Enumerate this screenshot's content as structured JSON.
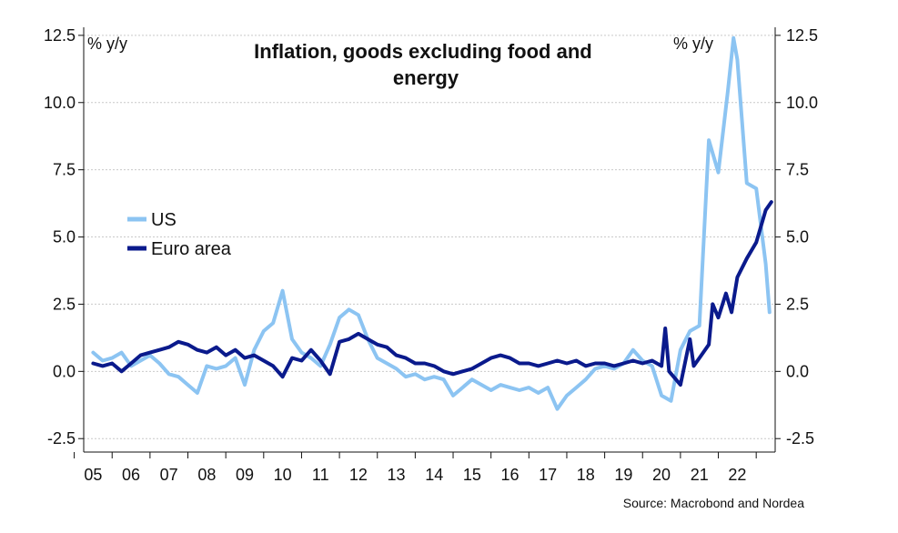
{
  "chart_data": {
    "type": "line",
    "title": "Inflation, goods excluding food and energy",
    "ylabel_left": "% y/y",
    "ylabel_right": "% y/y",
    "source": "Source: Macrobond and Nordea",
    "ylim": [
      -3.0,
      12.8
    ],
    "y_ticks": [
      -2.5,
      0.0,
      2.5,
      5.0,
      7.5,
      10.0,
      12.5
    ],
    "y_tick_labels": [
      "-2.5",
      "0.0",
      "2.5",
      "5.0",
      "7.5",
      "10.0",
      "12.5"
    ],
    "xlim": [
      2004.75,
      2023.0
    ],
    "x_ticks": [
      2005,
      2006,
      2007,
      2008,
      2009,
      2010,
      2011,
      2012,
      2013,
      2014,
      2015,
      2016,
      2017,
      2018,
      2019,
      2020,
      2021,
      2022
    ],
    "x_tick_labels": [
      "05",
      "06",
      "07",
      "08",
      "09",
      "10",
      "11",
      "12",
      "13",
      "14",
      "15",
      "16",
      "17",
      "18",
      "19",
      "20",
      "21",
      "22"
    ],
    "legend_position": "left-middle",
    "grid": true,
    "series": [
      {
        "name": "US",
        "color": "#8cc4f2",
        "points": [
          [
            2005.0,
            0.7
          ],
          [
            2005.25,
            0.4
          ],
          [
            2005.5,
            0.5
          ],
          [
            2005.75,
            0.7
          ],
          [
            2006.0,
            0.2
          ],
          [
            2006.25,
            0.4
          ],
          [
            2006.5,
            0.6
          ],
          [
            2006.75,
            0.3
          ],
          [
            2007.0,
            -0.1
          ],
          [
            2007.25,
            -0.2
          ],
          [
            2007.5,
            -0.5
          ],
          [
            2007.75,
            -0.8
          ],
          [
            2008.0,
            0.2
          ],
          [
            2008.25,
            0.1
          ],
          [
            2008.5,
            0.2
          ],
          [
            2008.75,
            0.5
          ],
          [
            2009.0,
            -0.5
          ],
          [
            2009.25,
            0.8
          ],
          [
            2009.5,
            1.5
          ],
          [
            2009.75,
            1.8
          ],
          [
            2010.0,
            3.0
          ],
          [
            2010.25,
            1.2
          ],
          [
            2010.5,
            0.7
          ],
          [
            2010.75,
            0.5
          ],
          [
            2011.0,
            0.2
          ],
          [
            2011.25,
            1.0
          ],
          [
            2011.5,
            2.0
          ],
          [
            2011.75,
            2.3
          ],
          [
            2012.0,
            2.1
          ],
          [
            2012.25,
            1.2
          ],
          [
            2012.5,
            0.5
          ],
          [
            2012.75,
            0.3
          ],
          [
            2013.0,
            0.1
          ],
          [
            2013.25,
            -0.2
          ],
          [
            2013.5,
            -0.1
          ],
          [
            2013.75,
            -0.3
          ],
          [
            2014.0,
            -0.2
          ],
          [
            2014.25,
            -0.3
          ],
          [
            2014.5,
            -0.9
          ],
          [
            2014.75,
            -0.6
          ],
          [
            2015.0,
            -0.3
          ],
          [
            2015.25,
            -0.5
          ],
          [
            2015.5,
            -0.7
          ],
          [
            2015.75,
            -0.5
          ],
          [
            2016.0,
            -0.6
          ],
          [
            2016.25,
            -0.7
          ],
          [
            2016.5,
            -0.6
          ],
          [
            2016.75,
            -0.8
          ],
          [
            2017.0,
            -0.6
          ],
          [
            2017.25,
            -1.4
          ],
          [
            2017.5,
            -0.9
          ],
          [
            2017.75,
            -0.6
          ],
          [
            2018.0,
            -0.3
          ],
          [
            2018.25,
            0.1
          ],
          [
            2018.5,
            0.2
          ],
          [
            2018.75,
            0.1
          ],
          [
            2019.0,
            0.3
          ],
          [
            2019.25,
            0.8
          ],
          [
            2019.5,
            0.4
          ],
          [
            2019.75,
            0.2
          ],
          [
            2020.0,
            -0.9
          ],
          [
            2020.25,
            -1.1
          ],
          [
            2020.5,
            0.8
          ],
          [
            2020.75,
            1.5
          ],
          [
            2021.0,
            1.7
          ],
          [
            2021.25,
            8.6
          ],
          [
            2021.5,
            7.4
          ],
          [
            2021.75,
            10.4
          ],
          [
            2021.9,
            12.4
          ],
          [
            2022.0,
            11.6
          ],
          [
            2022.25,
            7.0
          ],
          [
            2022.5,
            6.8
          ],
          [
            2022.75,
            4.0
          ],
          [
            2022.85,
            2.2
          ]
        ]
      },
      {
        "name": "Euro area",
        "color": "#0a1a8c",
        "points": [
          [
            2005.0,
            0.3
          ],
          [
            2005.25,
            0.2
          ],
          [
            2005.5,
            0.3
          ],
          [
            2005.75,
            0.0
          ],
          [
            2006.0,
            0.3
          ],
          [
            2006.25,
            0.6
          ],
          [
            2006.5,
            0.7
          ],
          [
            2006.75,
            0.8
          ],
          [
            2007.0,
            0.9
          ],
          [
            2007.25,
            1.1
          ],
          [
            2007.5,
            1.0
          ],
          [
            2007.75,
            0.8
          ],
          [
            2008.0,
            0.7
          ],
          [
            2008.25,
            0.9
          ],
          [
            2008.5,
            0.6
          ],
          [
            2008.75,
            0.8
          ],
          [
            2009.0,
            0.5
          ],
          [
            2009.25,
            0.6
          ],
          [
            2009.5,
            0.4
          ],
          [
            2009.75,
            0.2
          ],
          [
            2010.0,
            -0.2
          ],
          [
            2010.25,
            0.5
          ],
          [
            2010.5,
            0.4
          ],
          [
            2010.75,
            0.8
          ],
          [
            2011.0,
            0.4
          ],
          [
            2011.25,
            -0.1
          ],
          [
            2011.5,
            1.1
          ],
          [
            2011.75,
            1.2
          ],
          [
            2012.0,
            1.4
          ],
          [
            2012.25,
            1.2
          ],
          [
            2012.5,
            1.0
          ],
          [
            2012.75,
            0.9
          ],
          [
            2013.0,
            0.6
          ],
          [
            2013.25,
            0.5
          ],
          [
            2013.5,
            0.3
          ],
          [
            2013.75,
            0.3
          ],
          [
            2014.0,
            0.2
          ],
          [
            2014.25,
            0.0
          ],
          [
            2014.5,
            -0.1
          ],
          [
            2014.75,
            0.0
          ],
          [
            2015.0,
            0.1
          ],
          [
            2015.25,
            0.3
          ],
          [
            2015.5,
            0.5
          ],
          [
            2015.75,
            0.6
          ],
          [
            2016.0,
            0.5
          ],
          [
            2016.25,
            0.3
          ],
          [
            2016.5,
            0.3
          ],
          [
            2016.75,
            0.2
          ],
          [
            2017.0,
            0.3
          ],
          [
            2017.25,
            0.4
          ],
          [
            2017.5,
            0.3
          ],
          [
            2017.75,
            0.4
          ],
          [
            2018.0,
            0.2
          ],
          [
            2018.25,
            0.3
          ],
          [
            2018.5,
            0.3
          ],
          [
            2018.75,
            0.2
          ],
          [
            2019.0,
            0.3
          ],
          [
            2019.25,
            0.4
          ],
          [
            2019.5,
            0.3
          ],
          [
            2019.75,
            0.4
          ],
          [
            2020.0,
            0.2
          ],
          [
            2020.1,
            1.6
          ],
          [
            2020.2,
            0.0
          ],
          [
            2020.5,
            -0.5
          ],
          [
            2020.75,
            1.2
          ],
          [
            2020.85,
            0.2
          ],
          [
            2021.0,
            0.5
          ],
          [
            2021.25,
            1.0
          ],
          [
            2021.35,
            2.5
          ],
          [
            2021.5,
            2.0
          ],
          [
            2021.7,
            2.9
          ],
          [
            2021.85,
            2.2
          ],
          [
            2022.0,
            3.5
          ],
          [
            2022.25,
            4.2
          ],
          [
            2022.5,
            4.8
          ],
          [
            2022.75,
            6.0
          ],
          [
            2022.9,
            6.3
          ]
        ]
      }
    ]
  }
}
